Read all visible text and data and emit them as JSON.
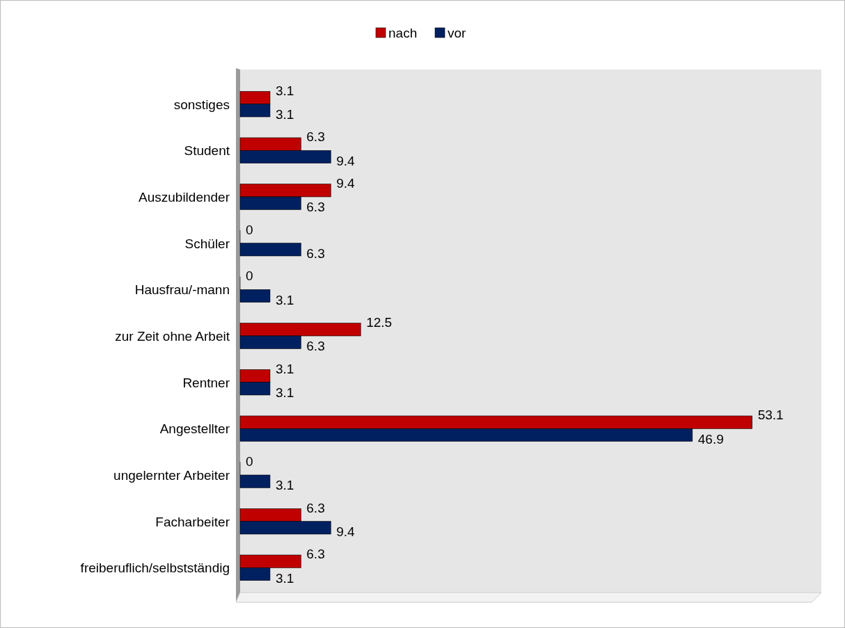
{
  "chart_data": {
    "type": "bar",
    "orientation": "horizontal",
    "categories": [
      "sonstiges",
      "Student",
      "Auszubildender",
      "Schüler",
      "Hausfrau/-mann",
      "zur Zeit ohne Arbeit",
      "Rentner",
      "Angestellter",
      "ungelernter Arbeiter",
      "Facharbeiter",
      "freiberuflich/selbstständig"
    ],
    "series": [
      {
        "name": "nach",
        "color": "#c00000",
        "values": [
          3.1,
          6.3,
          9.4,
          0,
          0,
          12.5,
          3.1,
          53.1,
          0,
          6.3,
          6.3
        ]
      },
      {
        "name": "vor",
        "color": "#002060",
        "values": [
          3.1,
          9.4,
          6.3,
          6.3,
          3.1,
          6.3,
          3.1,
          46.9,
          3.1,
          9.4,
          3.1
        ]
      }
    ],
    "data_labels": true,
    "legend": "top",
    "grid": false
  }
}
